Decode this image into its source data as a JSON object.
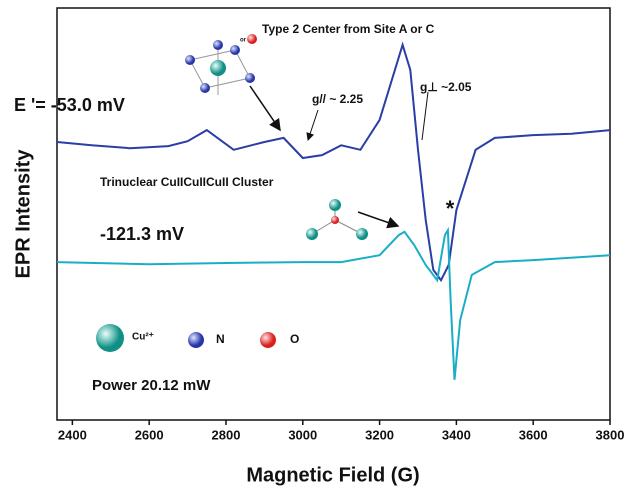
{
  "chart_data": {
    "type": "line",
    "xlabel": "Magnetic Field (G)",
    "ylabel": "EPR Intensity",
    "xlim": [
      2360,
      3800
    ],
    "xticks": [
      2400,
      2600,
      2800,
      3000,
      3200,
      3400,
      3600,
      3800
    ],
    "ylim": [
      0,
      100
    ],
    "annotations": [
      "Type 2 Center from Site A or C",
      "g// ~ 2.25",
      "g⊥ ~2.05",
      "E '= -53.0 mV",
      "Trinuclear CuIICuIICuII Cluster",
      "-121.3 mV",
      "*",
      "Cu²⁺",
      "N",
      "O",
      "Power 20.12 mW"
    ],
    "series": [
      {
        "name": "E '= -53.0 mV",
        "color": "#2a3ea6",
        "x": [
          2360,
          2450,
          2550,
          2650,
          2700,
          2750,
          2820,
          2900,
          2950,
          3000,
          3050,
          3100,
          3150,
          3200,
          3240,
          3260,
          3280,
          3300,
          3320,
          3340,
          3360,
          3380,
          3400,
          3450,
          3500,
          3600,
          3700,
          3800
        ],
        "values": [
          67.8,
          67,
          66.3,
          66.8,
          68,
          70.7,
          65.9,
          67.8,
          68.8,
          63.9,
          64.6,
          67,
          65.9,
          73.2,
          85.4,
          91.5,
          85.4,
          65.9,
          48.8,
          36.6,
          34.1,
          37.8,
          51.2,
          65.9,
          68.8,
          69.5,
          69.8,
          70.7
        ]
      },
      {
        "name": "-121.3 mV",
        "color": "#1aaec6",
        "x": [
          2360,
          2600,
          2800,
          3000,
          3100,
          3200,
          3250,
          3265,
          3290,
          3320,
          3350,
          3370,
          3378,
          3385,
          3395,
          3410,
          3440,
          3500,
          3600,
          3800
        ],
        "values": [
          38.5,
          38,
          38.3,
          38.5,
          38.5,
          40.2,
          45.1,
          45.9,
          42.7,
          37.8,
          34.1,
          45.1,
          46.3,
          29.3,
          9.8,
          24.4,
          35.4,
          38.5,
          39,
          40.2
        ]
      }
    ]
  }
}
